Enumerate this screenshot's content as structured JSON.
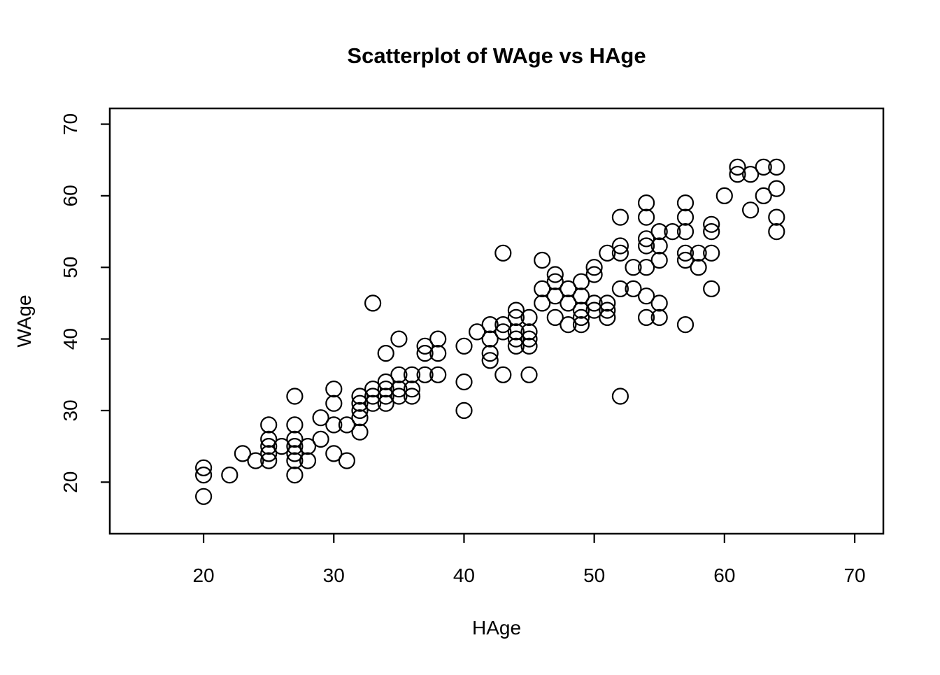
{
  "colors": {
    "background": "#ffffff",
    "foreground": "#000000"
  },
  "chart_data": {
    "type": "scatter",
    "title": "Scatterplot of WAge vs HAge",
    "xlabel": "HAge",
    "ylabel": "WAge",
    "x_ticks": [
      20,
      30,
      40,
      50,
      60,
      70
    ],
    "y_ticks": [
      20,
      30,
      40,
      50,
      60,
      70
    ],
    "axis_range": {
      "xmin": 12.8,
      "xmax": 72.2,
      "ymin": 12.8,
      "ymax": 72.2
    },
    "marker": "open-circle",
    "grid": false,
    "legend": "none",
    "points": [
      [
        20,
        22
      ],
      [
        20,
        21
      ],
      [
        20,
        18
      ],
      [
        22,
        21
      ],
      [
        23,
        24
      ],
      [
        24,
        23
      ],
      [
        25,
        28
      ],
      [
        25,
        26
      ],
      [
        25,
        25
      ],
      [
        25,
        24
      ],
      [
        25,
        23
      ],
      [
        26,
        25
      ],
      [
        27,
        32
      ],
      [
        27,
        28
      ],
      [
        27,
        26
      ],
      [
        27,
        25
      ],
      [
        27,
        24
      ],
      [
        27,
        23
      ],
      [
        27,
        21
      ],
      [
        28,
        25
      ],
      [
        28,
        23
      ],
      [
        29,
        29
      ],
      [
        29,
        26
      ],
      [
        30,
        33
      ],
      [
        30,
        31
      ],
      [
        30,
        28
      ],
      [
        30,
        24
      ],
      [
        31,
        28
      ],
      [
        31,
        23
      ],
      [
        32,
        32
      ],
      [
        32,
        31
      ],
      [
        32,
        30
      ],
      [
        32,
        29
      ],
      [
        32,
        27
      ],
      [
        33,
        45
      ],
      [
        33,
        33
      ],
      [
        33,
        32
      ],
      [
        33,
        31
      ],
      [
        34,
        38
      ],
      [
        34,
        34
      ],
      [
        34,
        33
      ],
      [
        34,
        32
      ],
      [
        34,
        31
      ],
      [
        35,
        40
      ],
      [
        35,
        35
      ],
      [
        35,
        33
      ],
      [
        35,
        32
      ],
      [
        36,
        35
      ],
      [
        36,
        33
      ],
      [
        36,
        32
      ],
      [
        37,
        39
      ],
      [
        37,
        38
      ],
      [
        37,
        35
      ],
      [
        38,
        40
      ],
      [
        38,
        38
      ],
      [
        38,
        35
      ],
      [
        40,
        39
      ],
      [
        40,
        34
      ],
      [
        40,
        30
      ],
      [
        41,
        41
      ],
      [
        42,
        42
      ],
      [
        42,
        40
      ],
      [
        42,
        38
      ],
      [
        42,
        37
      ],
      [
        43,
        52
      ],
      [
        43,
        42
      ],
      [
        43,
        41
      ],
      [
        43,
        35
      ],
      [
        44,
        44
      ],
      [
        44,
        43
      ],
      [
        44,
        41
      ],
      [
        44,
        40
      ],
      [
        44,
        39
      ],
      [
        45,
        43
      ],
      [
        45,
        41
      ],
      [
        45,
        40
      ],
      [
        45,
        39
      ],
      [
        45,
        35
      ],
      [
        46,
        51
      ],
      [
        46,
        47
      ],
      [
        46,
        45
      ],
      [
        47,
        49
      ],
      [
        47,
        48
      ],
      [
        47,
        46
      ],
      [
        47,
        43
      ],
      [
        48,
        47
      ],
      [
        48,
        45
      ],
      [
        48,
        42
      ],
      [
        49,
        48
      ],
      [
        49,
        46
      ],
      [
        49,
        44
      ],
      [
        49,
        43
      ],
      [
        49,
        42
      ],
      [
        50,
        50
      ],
      [
        50,
        49
      ],
      [
        50,
        45
      ],
      [
        50,
        44
      ],
      [
        51,
        52
      ],
      [
        51,
        45
      ],
      [
        51,
        44
      ],
      [
        51,
        43
      ],
      [
        52,
        57
      ],
      [
        52,
        53
      ],
      [
        52,
        52
      ],
      [
        52,
        47
      ],
      [
        52,
        32
      ],
      [
        53,
        50
      ],
      [
        53,
        47
      ],
      [
        54,
        59
      ],
      [
        54,
        57
      ],
      [
        54,
        54
      ],
      [
        54,
        53
      ],
      [
        54,
        50
      ],
      [
        54,
        46
      ],
      [
        54,
        43
      ],
      [
        55,
        55
      ],
      [
        55,
        53
      ],
      [
        55,
        51
      ],
      [
        55,
        45
      ],
      [
        55,
        43
      ],
      [
        56,
        55
      ],
      [
        57,
        59
      ],
      [
        57,
        57
      ],
      [
        57,
        55
      ],
      [
        57,
        52
      ],
      [
        57,
        51
      ],
      [
        57,
        42
      ],
      [
        58,
        52
      ],
      [
        58,
        50
      ],
      [
        59,
        56
      ],
      [
        59,
        55
      ],
      [
        59,
        52
      ],
      [
        59,
        47
      ],
      [
        60,
        60
      ],
      [
        61,
        64
      ],
      [
        61,
        63
      ],
      [
        62,
        63
      ],
      [
        62,
        58
      ],
      [
        63,
        64
      ],
      [
        63,
        60
      ],
      [
        64,
        64
      ],
      [
        64,
        61
      ],
      [
        64,
        57
      ],
      [
        64,
        55
      ]
    ]
  }
}
